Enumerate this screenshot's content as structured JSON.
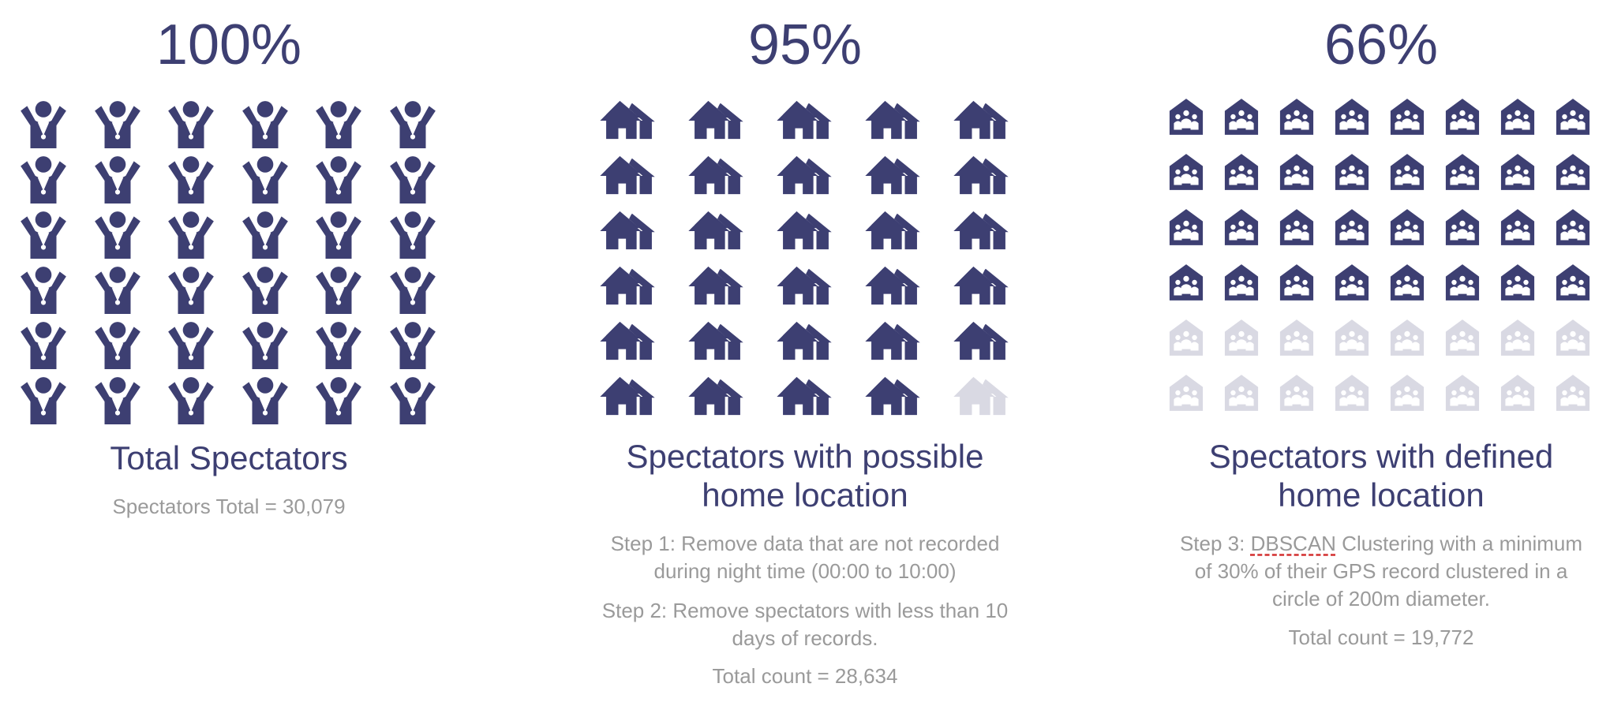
{
  "colors": {
    "accent": "#3d3f72",
    "inactive": "#d9d9e3",
    "muted_text": "#9a9a9a",
    "dbscan_underline": "#d32f2f"
  },
  "panels": [
    {
      "percent_label": "100%",
      "title": "Total Spectators",
      "icon": "cheering-person-icon",
      "total_text": "Spectators Total = 30,079"
    },
    {
      "percent_label": "95%",
      "title_line1": "Spectators with possible",
      "title_line2": "home location",
      "icon": "houses-icon",
      "step1_line1": "Step 1: Remove data that are not recorded",
      "step1_line2": "during night time (00:00 to 10:00)",
      "step2_line1": "Step 2: Remove spectators with less than 10",
      "step2_line2": "days of records.",
      "total_text": "Total count = 28,634"
    },
    {
      "percent_label": "66%",
      "title_line1": "Spectators with defined",
      "title_line2": "home location",
      "icon": "home-family-icon",
      "step3_prefix": "Step 3: ",
      "step3_term": "DBSCAN",
      "step3_rest": " Clustering with a minimum",
      "step3_line2": "of 30% of their GPS record clustered in a",
      "step3_line3": "circle of 200m diameter.",
      "total_text": "Total count = 19,772"
    }
  ],
  "chart_data": [
    {
      "type": "pictograph",
      "title": "Total Spectators",
      "percent": 100,
      "value": 30079,
      "icons_total": 36,
      "icons_filled": 36
    },
    {
      "type": "pictograph",
      "title": "Spectators with possible home location",
      "percent": 95,
      "value": 28634,
      "icons_total": 30,
      "icons_filled": 29
    },
    {
      "type": "pictograph",
      "title": "Spectators with defined home location",
      "percent": 66,
      "value": 19772,
      "icons_total": 48,
      "icons_filled": 32
    }
  ]
}
